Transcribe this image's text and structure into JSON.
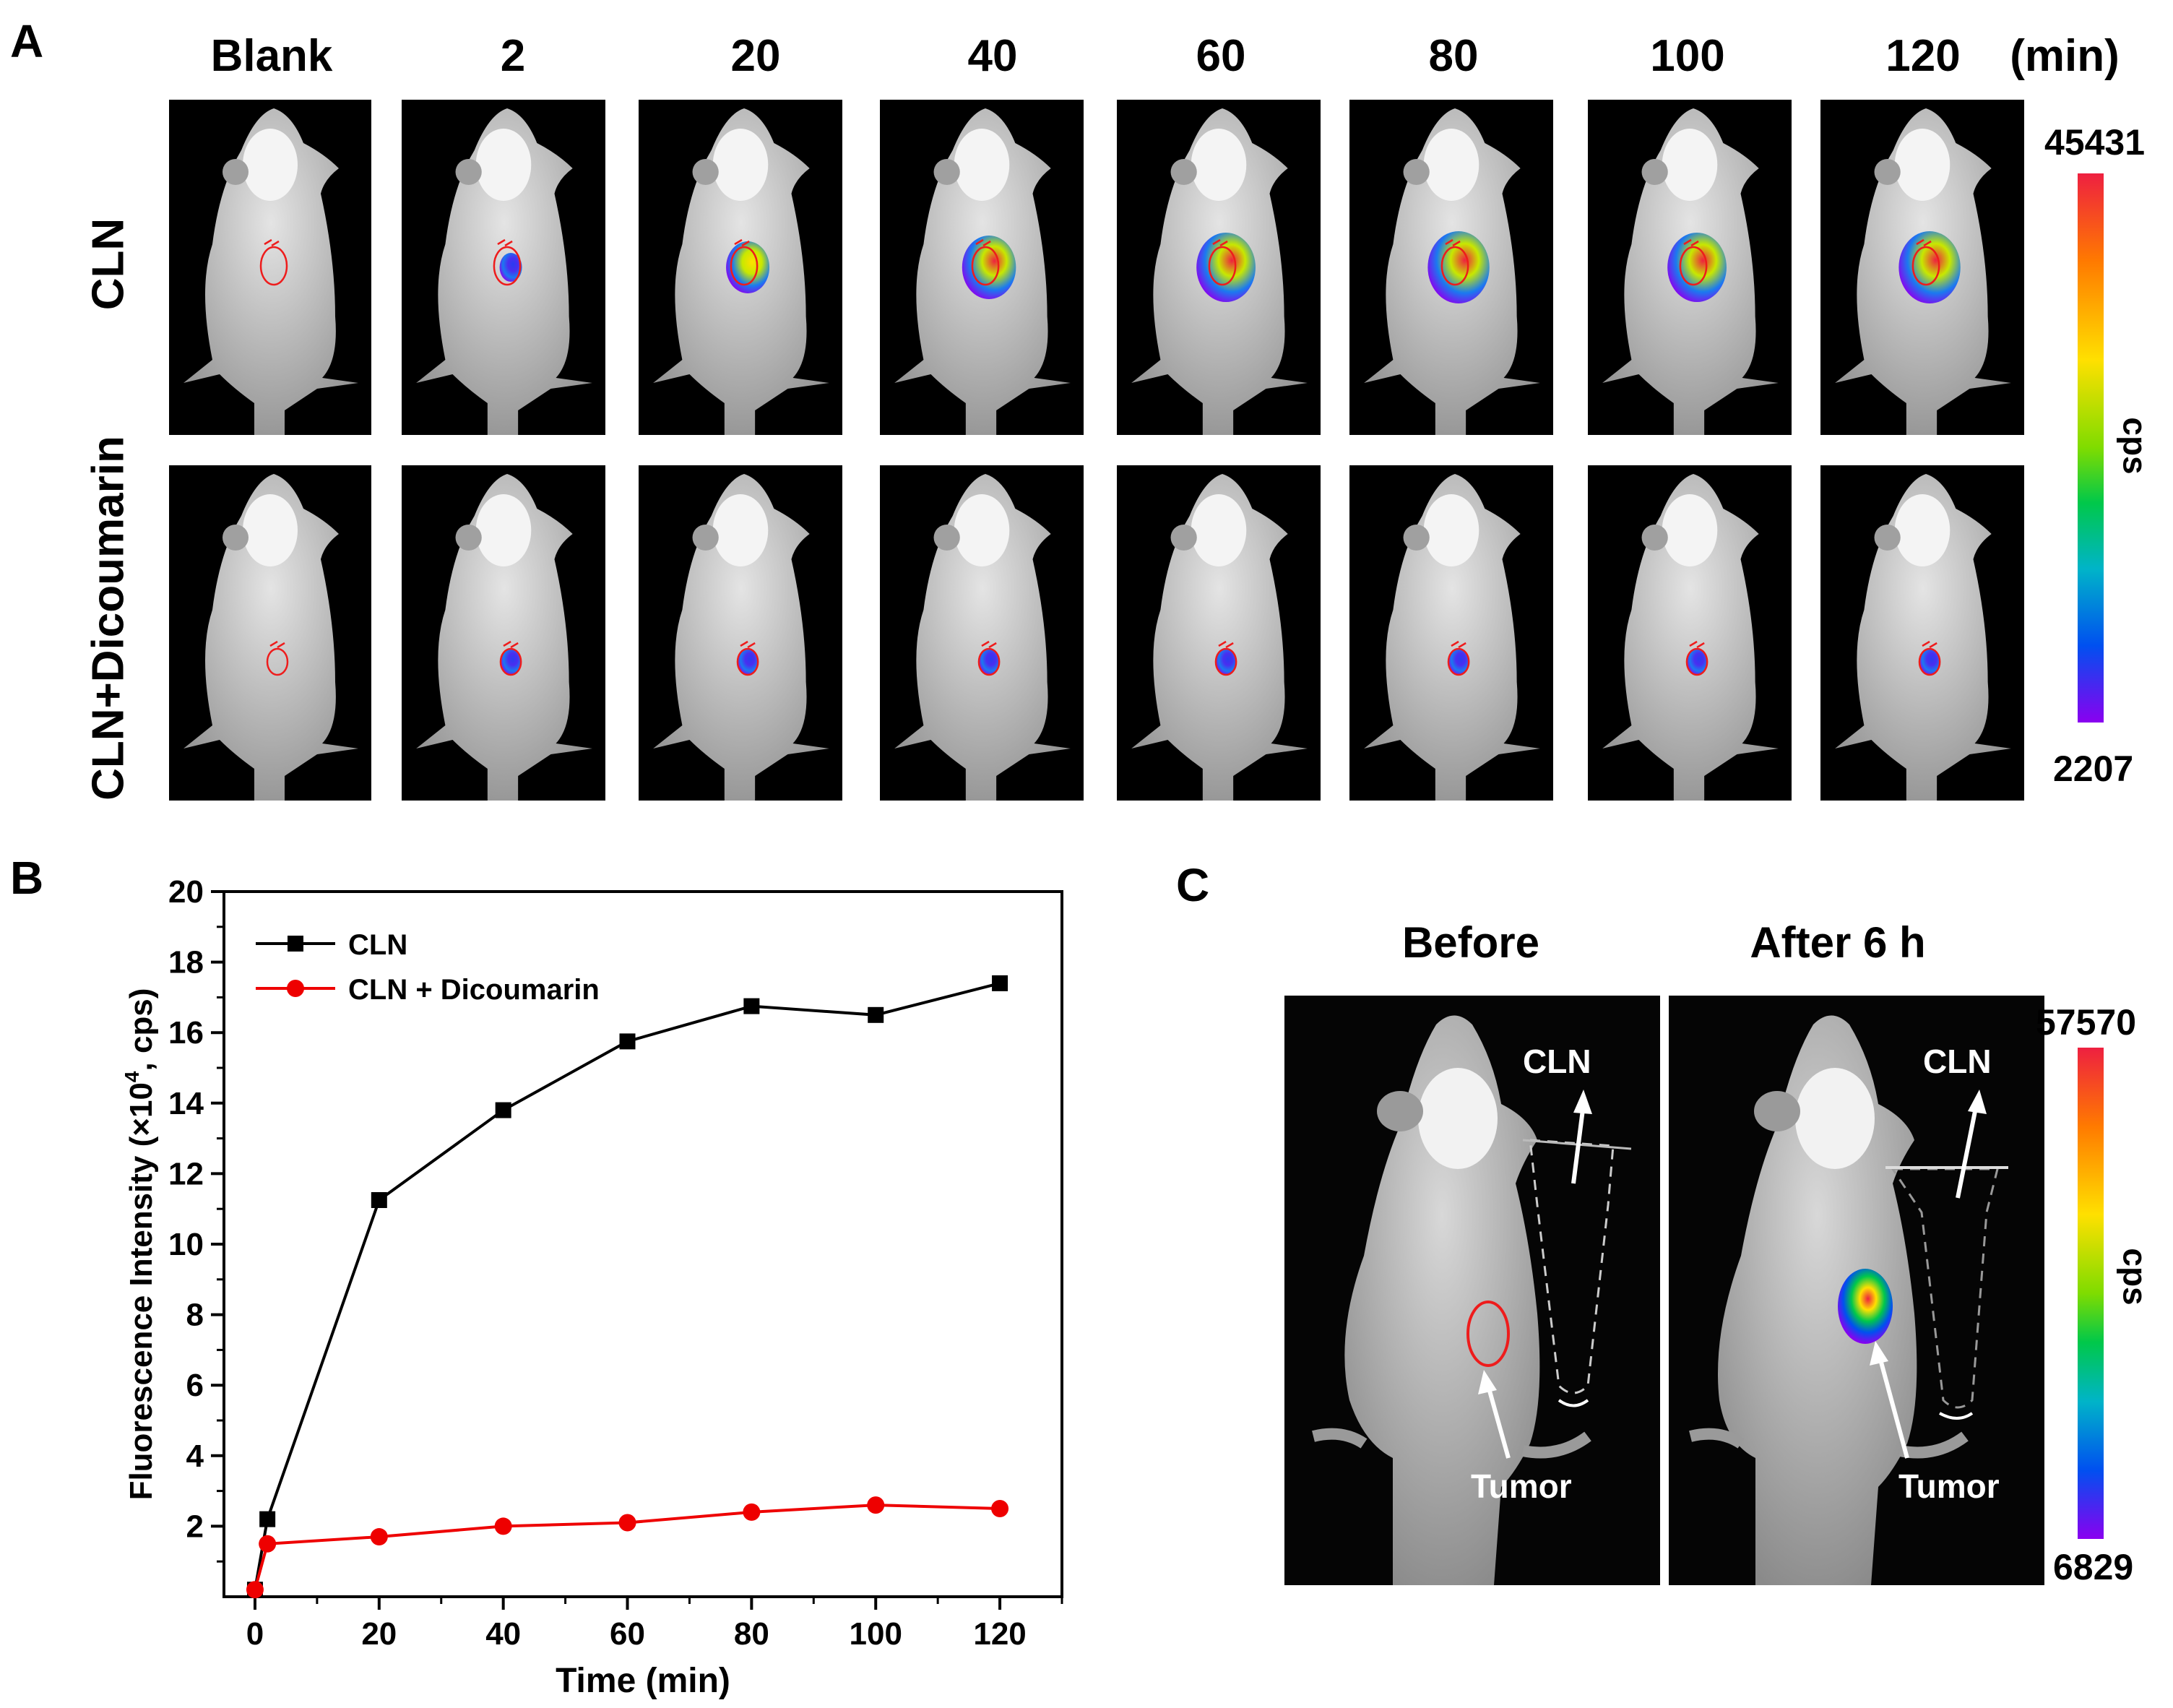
{
  "panel_a": {
    "letter": "A",
    "time_points": [
      "Blank",
      "2",
      "20",
      "40",
      "60",
      "80",
      "100",
      "120"
    ],
    "unit": "(min)",
    "rows": [
      {
        "label": "CLN",
        "signal": [
          0,
          0.15,
          0.55,
          0.75,
          0.85,
          0.9,
          0.85,
          0.9
        ]
      },
      {
        "label": "CLN+Dicoumarin",
        "signal": [
          0,
          0.05,
          0.08,
          0.1,
          0.1,
          0.12,
          0.13,
          0.12
        ]
      }
    ],
    "colorbar": {
      "max": "45431",
      "min": "2207",
      "unit": "cps"
    }
  },
  "panel_b": {
    "letter": "B"
  },
  "chart_data": {
    "type": "line",
    "x": [
      0,
      2,
      20,
      40,
      60,
      80,
      100,
      120
    ],
    "series": [
      {
        "name": "CLN",
        "color": "#000000",
        "marker": "square",
        "values": [
          0.2,
          2.2,
          11.25,
          13.8,
          15.75,
          16.75,
          16.5,
          17.4
        ]
      },
      {
        "name": "CLN + Dicoumarin",
        "color": "#ee0000",
        "marker": "circle",
        "values": [
          0.2,
          1.5,
          1.7,
          2.0,
          2.1,
          2.4,
          2.6,
          2.5
        ]
      }
    ],
    "xlabel": "Time (min)",
    "ylabel_main": "Fluorescence Intensity (×10",
    "ylabel_exp": "4",
    "ylabel_tail": ", cps)",
    "xlim": [
      -5,
      130
    ],
    "ylim": [
      0,
      20
    ],
    "xticks": [
      0,
      20,
      40,
      60,
      80,
      100,
      120
    ],
    "yticks": [
      2,
      4,
      6,
      8,
      10,
      12,
      14,
      16,
      18,
      20
    ],
    "legend": "top-left"
  },
  "panel_c": {
    "letter": "C",
    "before_label": "Before",
    "after_label": "After 6 h",
    "tube_label": "CLN",
    "tumor_label": "Tumor",
    "colorbar": {
      "max": "57570",
      "min": "6829",
      "unit": "cps"
    }
  }
}
